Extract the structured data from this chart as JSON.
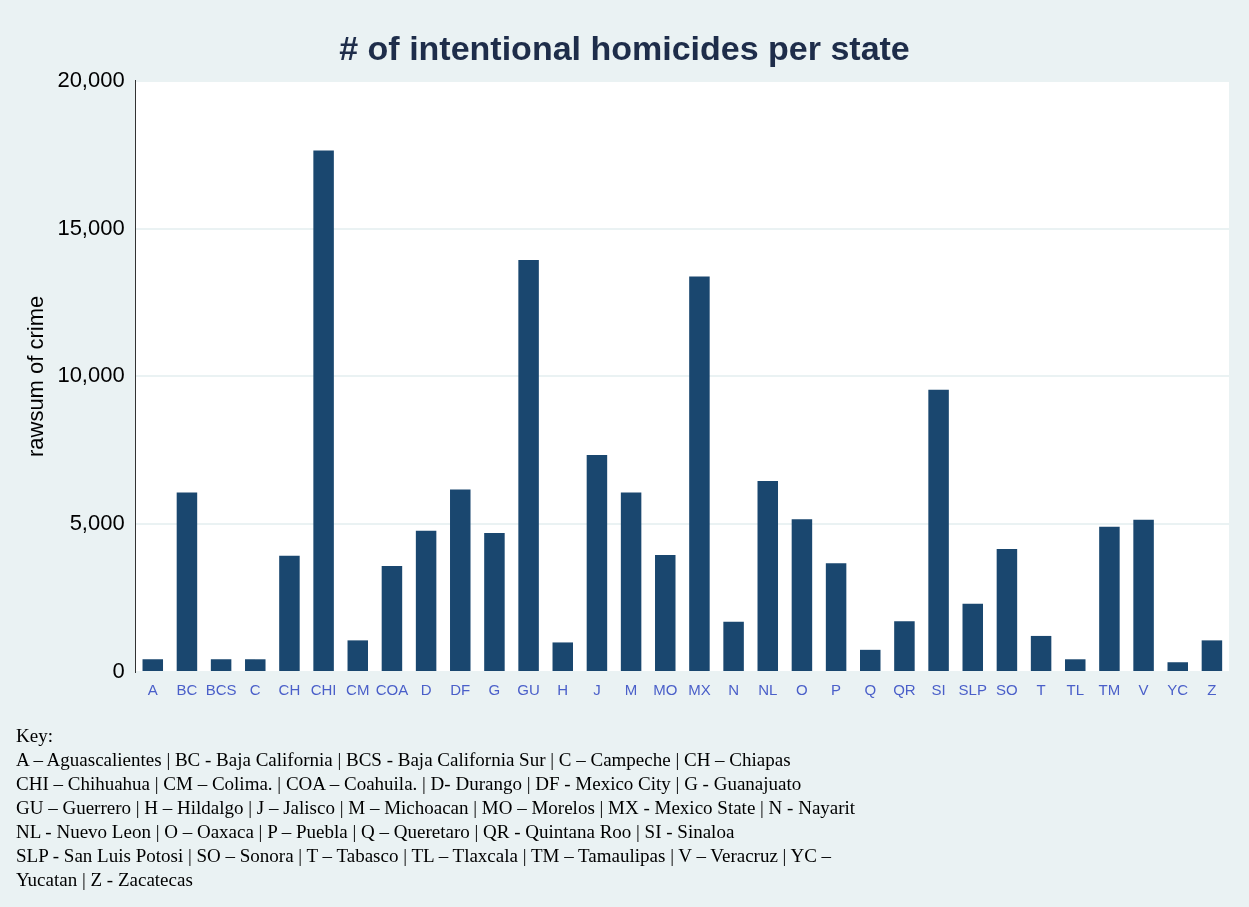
{
  "chart_data": {
    "type": "bar",
    "title": "# of intentional homicides per state",
    "ylabel": "rawsum of crime",
    "categories": [
      "A",
      "BC",
      "BCS",
      "C",
      "CH",
      "CHI",
      "CM",
      "COA",
      "D",
      "DF",
      "G",
      "GU",
      "H",
      "J",
      "M",
      "MO",
      "MX",
      "N",
      "NL",
      "O",
      "P",
      "Q",
      "QR",
      "SI",
      "SLP",
      "SO",
      "T",
      "TL",
      "TM",
      "V",
      "YC",
      "Z"
    ],
    "values": [
      430,
      6070,
      430,
      430,
      3930,
      17640,
      1070,
      3590,
      4780,
      6170,
      4700,
      13940,
      1000,
      7340,
      6070,
      3960,
      13380,
      1700,
      6460,
      5170,
      3680,
      750,
      1720,
      9550,
      2310,
      4160,
      1220,
      430,
      4910,
      5150,
      330,
      1070
    ],
    "color": "#1a476f",
    "ylim": [
      0,
      20000
    ],
    "yticks": [
      {
        "value": 0,
        "label": "0"
      },
      {
        "value": 5000,
        "label": "5,000"
      },
      {
        "value": 10000,
        "label": "10,000"
      },
      {
        "value": 15000,
        "label": "15,000"
      },
      {
        "value": 20000,
        "label": "20,000"
      }
    ],
    "grid": "y",
    "annotations": [
      "Key:",
      "A – Aguascalientes | BC - Baja California | BCS - Baja California Sur | C – Campeche | CH – Chiapas",
      "CHI – Chihuahua | CM – Colima. | COA – Coahuila. | D- Durango | DF - Mexico City | G - Guanajuato",
      "GU – Guerrero | H – Hildalgo | J – Jalisco | M – Michoacan | MO – Morelos | MX - Mexico State | N - Nayarit",
      "NL - Nuevo Leon | O – Oaxaca | P – Puebla | Q – Queretaro | QR - Quintana Roo | SI - Sinaloa",
      "SLP - San Luis Potosi | SO – Sonora | T – Tabasco | TL – Tlaxcala | TM – Tamaulipas | V – Veracruz | YC –",
      "Yucatan | Z - Zacatecas"
    ]
  }
}
